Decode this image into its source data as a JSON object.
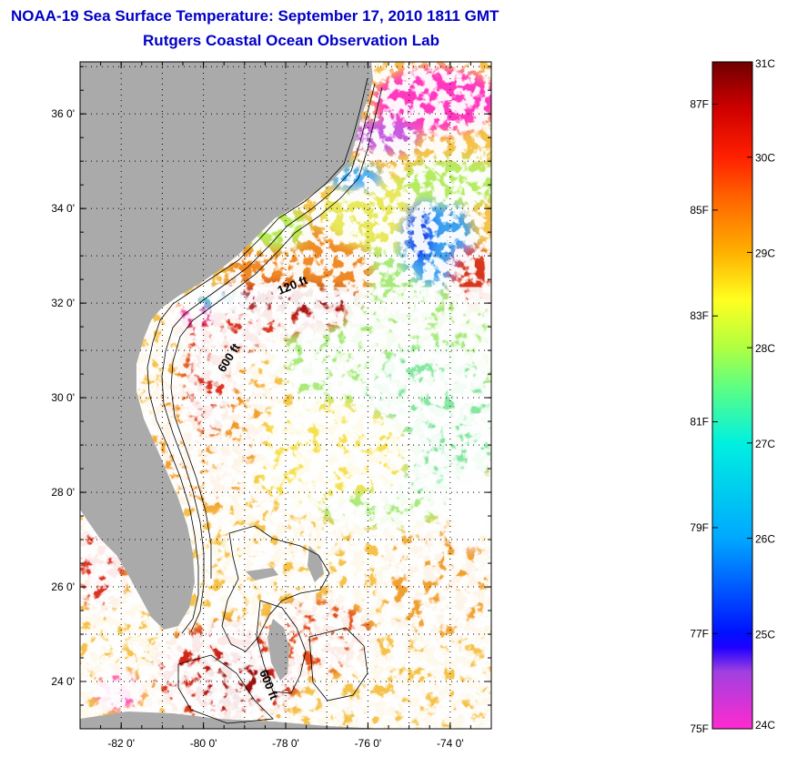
{
  "title": {
    "line1": "NOAA-19 Sea Surface Temperature:  September 17, 2010 1811 GMT",
    "line2": "Rutgers Coastal Ocean Observation Lab"
  },
  "map": {
    "lat_ticks": [
      {
        "value": 36,
        "label": "36 0'"
      },
      {
        "value": 34,
        "label": "34 0'"
      },
      {
        "value": 32,
        "label": "32 0'"
      },
      {
        "value": 30,
        "label": "30 0'"
      },
      {
        "value": 28,
        "label": "28 0'"
      },
      {
        "value": 26,
        "label": "26 0'"
      },
      {
        "value": 24,
        "label": "24 0'"
      }
    ],
    "lon_ticks": [
      {
        "value": -82,
        "label": "-82 0'"
      },
      {
        "value": -80,
        "label": "-80 0'"
      },
      {
        "value": -78,
        "label": "-78 0'"
      },
      {
        "value": -76,
        "label": "-76 0'"
      },
      {
        "value": -74,
        "label": "-74 0'"
      }
    ],
    "lat_range": [
      23.0,
      37.1
    ],
    "lon_range": [
      -83.0,
      -73.0
    ],
    "contour_labels": [
      {
        "text": "120 ft",
        "lon": -77.8,
        "lat": 32.3,
        "angle": -22
      },
      {
        "text": "600 ft",
        "lon": -79.3,
        "lat": 30.8,
        "angle": -58
      },
      {
        "text": "600 ft",
        "lon": -78.5,
        "lat": 23.9,
        "angle": 68
      }
    ],
    "colors": {
      "land": "#aaaaaa",
      "cloud": "#ffffff",
      "warm": "#d62a1a",
      "hot": "#a01010",
      "orange": "#f58c1a",
      "yellow": "#f5d535",
      "green": "#9be870",
      "cyan": "#3fd8dc",
      "blue": "#1e5ae6",
      "magenta": "#f02ab8"
    }
  },
  "legend": {
    "celsius": [
      {
        "value": 31,
        "label": "31C"
      },
      {
        "value": 30,
        "label": "30C"
      },
      {
        "value": 29,
        "label": "29C"
      },
      {
        "value": 28,
        "label": "28C"
      },
      {
        "value": 27,
        "label": "27C"
      },
      {
        "value": 26,
        "label": "26C"
      },
      {
        "value": 25,
        "label": "25C"
      },
      {
        "value": 24,
        "label": "24C"
      }
    ],
    "fahrenheit": [
      {
        "value": 87,
        "label": "87F"
      },
      {
        "value": 85,
        "label": "85F"
      },
      {
        "value": 83,
        "label": "83F"
      },
      {
        "value": 81,
        "label": "81F"
      },
      {
        "value": 79,
        "label": "79F"
      },
      {
        "value": 77,
        "label": "77F"
      },
      {
        "value": 75,
        "label": "75F"
      }
    ],
    "range_c": [
      24,
      31
    ],
    "stops": [
      {
        "c": 24.0,
        "color": "#ff2ad0"
      },
      {
        "c": 24.6,
        "color": "#a040e0"
      },
      {
        "c": 24.85,
        "color": "#2000ff"
      },
      {
        "c": 25.0,
        "color": "#0010ff"
      },
      {
        "c": 26.0,
        "color": "#00a8ff"
      },
      {
        "c": 27.0,
        "color": "#00f0e0"
      },
      {
        "c": 27.6,
        "color": "#60ff80"
      },
      {
        "c": 28.0,
        "color": "#b0ff40"
      },
      {
        "c": 28.5,
        "color": "#ffff20"
      },
      {
        "c": 29.0,
        "color": "#ffb000"
      },
      {
        "c": 29.6,
        "color": "#ff6000"
      },
      {
        "c": 30.0,
        "color": "#ff2000"
      },
      {
        "c": 30.5,
        "color": "#d00000"
      },
      {
        "c": 31.0,
        "color": "#700000"
      }
    ]
  }
}
